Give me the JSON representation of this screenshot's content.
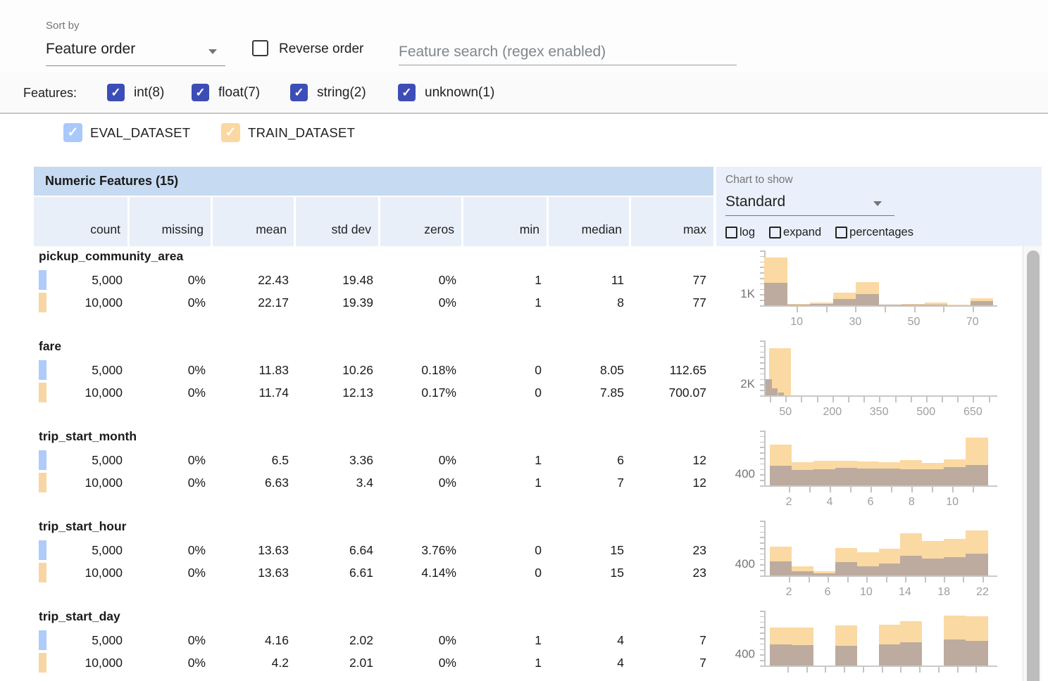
{
  "topbar": {
    "sort_by_label": "Sort by",
    "sort_value": "Feature order",
    "reverse_label": "Reverse order",
    "search_placeholder": "Feature search (regex enabled)"
  },
  "features_bar": {
    "label": "Features:",
    "types": [
      {
        "label": "int(8)",
        "checked": true
      },
      {
        "label": "float(7)",
        "checked": true
      },
      {
        "label": "string(2)",
        "checked": true
      },
      {
        "label": "unknown(1)",
        "checked": true
      }
    ]
  },
  "datasets": [
    {
      "label": "EVAL_DATASET",
      "checkbox_color": "#a9c8fb",
      "swatch_color": "#aecbfa",
      "checked": true
    },
    {
      "label": "TRAIN_DATASET",
      "checkbox_color": "#fbd7a1",
      "swatch_color": "#f8d6a3",
      "checked": true
    }
  ],
  "table": {
    "title": "Numeric Features (15)",
    "columns": [
      "count",
      "missing",
      "mean",
      "std dev",
      "zeros",
      "min",
      "median",
      "max"
    ],
    "features": [
      {
        "name": "pickup_community_area",
        "rows": [
          {
            "dataset": "EVAL_DATASET",
            "values": [
              "5,000",
              "0%",
              "22.43",
              "19.48",
              "0%",
              "1",
              "11",
              "77"
            ]
          },
          {
            "dataset": "TRAIN_DATASET",
            "values": [
              "10,000",
              "0%",
              "22.17",
              "19.39",
              "0%",
              "1",
              "8",
              "77"
            ]
          }
        ]
      },
      {
        "name": "fare",
        "rows": [
          {
            "dataset": "EVAL_DATASET",
            "values": [
              "5,000",
              "0%",
              "11.83",
              "10.26",
              "0.18%",
              "0",
              "8.05",
              "112.65"
            ]
          },
          {
            "dataset": "TRAIN_DATASET",
            "values": [
              "10,000",
              "0%",
              "11.74",
              "12.13",
              "0.17%",
              "0",
              "7.85",
              "700.07"
            ]
          }
        ]
      },
      {
        "name": "trip_start_month",
        "rows": [
          {
            "dataset": "EVAL_DATASET",
            "values": [
              "5,000",
              "0%",
              "6.5",
              "3.36",
              "0%",
              "1",
              "6",
              "12"
            ]
          },
          {
            "dataset": "TRAIN_DATASET",
            "values": [
              "10,000",
              "0%",
              "6.63",
              "3.4",
              "0%",
              "1",
              "7",
              "12"
            ]
          }
        ]
      },
      {
        "name": "trip_start_hour",
        "rows": [
          {
            "dataset": "EVAL_DATASET",
            "values": [
              "5,000",
              "0%",
              "13.63",
              "6.64",
              "3.76%",
              "0",
              "15",
              "23"
            ]
          },
          {
            "dataset": "TRAIN_DATASET",
            "values": [
              "10,000",
              "0%",
              "13.63",
              "6.61",
              "4.14%",
              "0",
              "15",
              "23"
            ]
          }
        ]
      },
      {
        "name": "trip_start_day",
        "rows": [
          {
            "dataset": "EVAL_DATASET",
            "values": [
              "5,000",
              "0%",
              "4.16",
              "2.02",
              "0%",
              "1",
              "4",
              "7"
            ]
          },
          {
            "dataset": "TRAIN_DATASET",
            "values": [
              "10,000",
              "0%",
              "4.2",
              "2.01",
              "0%",
              "1",
              "4",
              "7"
            ]
          }
        ]
      }
    ]
  },
  "chart_controls": {
    "label": "Chart to show",
    "value": "Standard",
    "toggles": [
      "log",
      "expand",
      "percentages"
    ]
  },
  "colors": {
    "indigo_checkbox": "#3d4db7",
    "train_bar": "#fbd9a3",
    "overlap_bar": "#bcab9e",
    "title_bg": "#c6dbf1",
    "header_bg": "#e9eff8",
    "panel_bg": "#e9f0fb"
  },
  "histograms": [
    {
      "feature": "pickup_community_area",
      "ylabel": "1K",
      "xlabels": [
        {
          "t": "10",
          "f": 0.142
        },
        {
          "t": "30",
          "f": 0.398
        },
        {
          "t": "50",
          "f": 0.654
        },
        {
          "t": "70",
          "f": 0.91
        }
      ],
      "xticks": [
        0.142,
        0.27,
        0.398,
        0.526,
        0.654,
        0.782,
        0.91
      ],
      "bars": [
        {
          "x": 0.0,
          "w": 0.1,
          "train": 68,
          "overlap": 32
        },
        {
          "x": 0.1,
          "w": 0.1,
          "train": 2,
          "overlap": 1
        },
        {
          "x": 0.2,
          "w": 0.1,
          "train": 4,
          "overlap": 2
        },
        {
          "x": 0.3,
          "w": 0.1,
          "train": 18,
          "overlap": 9
        },
        {
          "x": 0.4,
          "w": 0.1,
          "train": 33,
          "overlap": 16
        },
        {
          "x": 0.5,
          "w": 0.1,
          "train": 1,
          "overlap": 1
        },
        {
          "x": 0.6,
          "w": 0.1,
          "train": 2,
          "overlap": 1
        },
        {
          "x": 0.7,
          "w": 0.1,
          "train": 4,
          "overlap": 1
        },
        {
          "x": 0.8,
          "w": 0.1,
          "train": 1,
          "overlap": 0
        },
        {
          "x": 0.9,
          "w": 0.1,
          "train": 10,
          "overlap": 6
        }
      ]
    },
    {
      "feature": "fare",
      "ylabel": "2K",
      "xlabels": [
        {
          "t": "50",
          "f": 0.093
        },
        {
          "t": "200",
          "f": 0.298
        },
        {
          "t": "350",
          "f": 0.502
        },
        {
          "t": "500",
          "f": 0.707
        },
        {
          "t": "650",
          "f": 0.912
        }
      ],
      "xticks": [
        0.025,
        0.093,
        0.161,
        0.23,
        0.298,
        0.366,
        0.434,
        0.502,
        0.571,
        0.639,
        0.707,
        0.775,
        0.843,
        0.912,
        0.98
      ],
      "bars": [
        {
          "x": 0.022,
          "w": 0.095,
          "train": 67,
          "overlap": 0
        },
        {
          "x": 0.006,
          "w": 0.028,
          "train": 0,
          "overlap": 23
        },
        {
          "x": 0.034,
          "w": 0.026,
          "train": 0,
          "overlap": 10
        },
        {
          "x": 0.06,
          "w": 0.026,
          "train": 0,
          "overlap": 4
        }
      ]
    },
    {
      "feature": "trip_start_month",
      "ylabel": "400",
      "xlabels": [
        {
          "t": "2",
          "f": 0.108
        },
        {
          "t": "4",
          "f": 0.286
        },
        {
          "t": "6",
          "f": 0.465
        },
        {
          "t": "8",
          "f": 0.644
        },
        {
          "t": "10",
          "f": 0.822
        }
      ],
      "xticks": [
        0.108,
        0.197,
        0.286,
        0.376,
        0.465,
        0.554,
        0.644,
        0.733,
        0.822,
        0.911
      ],
      "bars": [
        {
          "x": 0.025,
          "w": 0.095,
          "train": 58,
          "overlap": 28
        },
        {
          "x": 0.12,
          "w": 0.095,
          "train": 33,
          "overlap": 22
        },
        {
          "x": 0.215,
          "w": 0.095,
          "train": 35,
          "overlap": 23
        },
        {
          "x": 0.31,
          "w": 0.095,
          "train": 35,
          "overlap": 25
        },
        {
          "x": 0.405,
          "w": 0.095,
          "train": 34,
          "overlap": 24
        },
        {
          "x": 0.5,
          "w": 0.095,
          "train": 33,
          "overlap": 24
        },
        {
          "x": 0.595,
          "w": 0.095,
          "train": 36,
          "overlap": 23
        },
        {
          "x": 0.69,
          "w": 0.095,
          "train": 32,
          "overlap": 23
        },
        {
          "x": 0.785,
          "w": 0.095,
          "train": 37,
          "overlap": 26
        },
        {
          "x": 0.88,
          "w": 0.098,
          "train": 68,
          "overlap": 29
        }
      ]
    },
    {
      "feature": "trip_start_hour",
      "ylabel": "400",
      "xlabels": [
        {
          "t": "2",
          "f": 0.108
        },
        {
          "t": "6",
          "f": 0.277
        },
        {
          "t": "10",
          "f": 0.446
        },
        {
          "t": "14",
          "f": 0.615
        },
        {
          "t": "18",
          "f": 0.785
        },
        {
          "t": "22",
          "f": 0.954
        }
      ],
      "xticks": [
        0.108,
        0.193,
        0.277,
        0.362,
        0.446,
        0.531,
        0.615,
        0.7,
        0.785,
        0.869,
        0.954
      ],
      "bars": [
        {
          "x": 0.025,
          "w": 0.095,
          "train": 41,
          "overlap": 20
        },
        {
          "x": 0.12,
          "w": 0.095,
          "train": 13,
          "overlap": 6
        },
        {
          "x": 0.215,
          "w": 0.095,
          "train": 6,
          "overlap": 3
        },
        {
          "x": 0.31,
          "w": 0.095,
          "train": 39,
          "overlap": 19
        },
        {
          "x": 0.405,
          "w": 0.095,
          "train": 33,
          "overlap": 13
        },
        {
          "x": 0.5,
          "w": 0.095,
          "train": 38,
          "overlap": 17
        },
        {
          "x": 0.595,
          "w": 0.095,
          "train": 60,
          "overlap": 28
        },
        {
          "x": 0.69,
          "w": 0.095,
          "train": 49,
          "overlap": 24
        },
        {
          "x": 0.785,
          "w": 0.095,
          "train": 52,
          "overlap": 26
        },
        {
          "x": 0.88,
          "w": 0.098,
          "train": 64,
          "overlap": 31
        }
      ]
    },
    {
      "feature": "trip_start_day",
      "ylabel": "400",
      "xlabels": [],
      "xticks": [
        0.102,
        0.184,
        0.266,
        0.349,
        0.431,
        0.513,
        0.595,
        0.677,
        0.76,
        0.842,
        0.924
      ],
      "bars": [
        {
          "x": 0.025,
          "w": 0.095,
          "train": 54,
          "overlap": 30
        },
        {
          "x": 0.12,
          "w": 0.095,
          "train": 54,
          "overlap": 29
        },
        {
          "x": 0.31,
          "w": 0.095,
          "train": 57,
          "overlap": 28
        },
        {
          "x": 0.5,
          "w": 0.095,
          "train": 58,
          "overlap": 30
        },
        {
          "x": 0.595,
          "w": 0.095,
          "train": 63,
          "overlap": 33
        },
        {
          "x": 0.785,
          "w": 0.095,
          "train": 71,
          "overlap": 37
        },
        {
          "x": 0.88,
          "w": 0.098,
          "train": 70,
          "overlap": 35
        }
      ]
    }
  ]
}
